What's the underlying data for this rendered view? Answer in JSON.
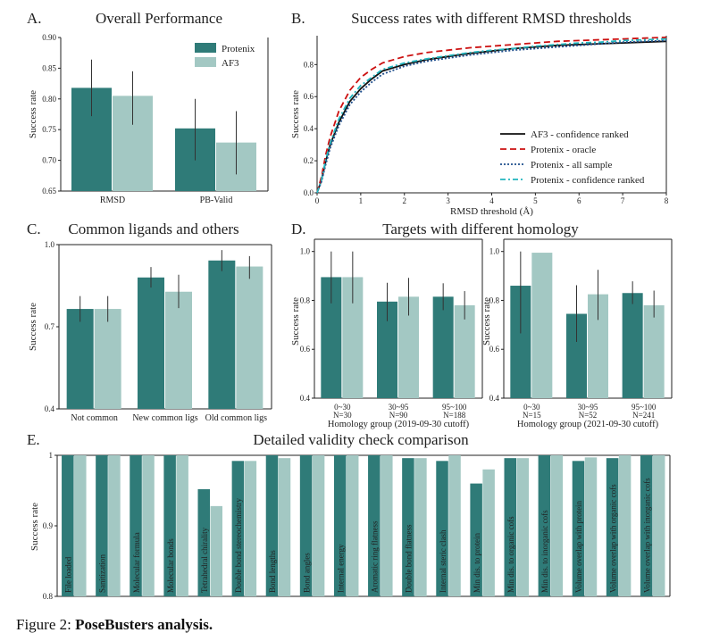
{
  "colors": {
    "protenix": "#2f7b78",
    "af3": "#a3c8c3",
    "err": "#333333",
    "oracle": "#cc1111",
    "confidence": "#111111",
    "allsample": "#1f4e8c",
    "protenix_conf": "#22b5bf"
  },
  "caption": {
    "prefix": "Figure 2: ",
    "bold": "PoseBusters analysis."
  },
  "chart_data": [
    {
      "id": "A",
      "type": "bar",
      "panel_label": "A.",
      "title": "Overall Performance",
      "ylabel": "Success rate",
      "xlabel": "",
      "ylim": [
        0.65,
        0.9
      ],
      "yticks": [
        "0.65",
        "0.70",
        "0.75",
        "0.80",
        "0.85",
        "0.90"
      ],
      "categories": [
        "RMSD",
        "PB-Valid"
      ],
      "legend": "top-right",
      "series": [
        {
          "name": "Protenix",
          "values": [
            0.818,
            0.752
          ],
          "err_low": [
            0.772,
            0.7
          ],
          "err_high": [
            0.864,
            0.8
          ]
        },
        {
          "name": "AF3",
          "values": [
            0.805,
            0.729
          ],
          "err_low": [
            0.758,
            0.677
          ],
          "err_high": [
            0.845,
            0.78
          ]
        }
      ]
    },
    {
      "id": "B",
      "type": "line",
      "panel_label": "B.",
      "title": "Success rates with different RMSD thresholds",
      "xlabel": "RMSD threshold (Å)",
      "ylabel": "Success rate",
      "xlim": [
        0,
        8
      ],
      "ylim": [
        0,
        0.98
      ],
      "xticks": [
        "0",
        "1",
        "2",
        "3",
        "4",
        "5",
        "6",
        "7",
        "8"
      ],
      "yticks": [
        "0.0",
        "0.2",
        "0.4",
        "0.6",
        "0.8"
      ],
      "legend": "bottom-right",
      "series": [
        {
          "name": "AF3 - confidence ranked",
          "style": "solid",
          "x": [
            0,
            0.1,
            0.2,
            0.3,
            0.5,
            0.75,
            1.0,
            1.25,
            1.5,
            2.0,
            2.5,
            3.0,
            3.5,
            4.0,
            4.5,
            5.0,
            5.5,
            6.0,
            6.5,
            7.0,
            7.5,
            8.0
          ],
          "y": [
            0,
            0.08,
            0.2,
            0.3,
            0.44,
            0.57,
            0.65,
            0.71,
            0.76,
            0.8,
            0.83,
            0.85,
            0.87,
            0.885,
            0.9,
            0.91,
            0.92,
            0.925,
            0.93,
            0.935,
            0.94,
            0.945
          ]
        },
        {
          "name": "Protenix - oracle",
          "style": "dashed",
          "x": [
            0,
            0.1,
            0.2,
            0.3,
            0.5,
            0.75,
            1.0,
            1.25,
            1.5,
            2.0,
            2.5,
            3.0,
            3.5,
            4.0,
            4.5,
            5.0,
            5.5,
            6.0,
            6.5,
            7.0,
            7.5,
            8.0
          ],
          "y": [
            0,
            0.1,
            0.24,
            0.35,
            0.51,
            0.64,
            0.72,
            0.77,
            0.81,
            0.85,
            0.875,
            0.89,
            0.905,
            0.915,
            0.925,
            0.935,
            0.945,
            0.95,
            0.955,
            0.96,
            0.965,
            0.97
          ]
        },
        {
          "name": "Protenix - all sample",
          "style": "dotted",
          "x": [
            0,
            0.1,
            0.2,
            0.3,
            0.5,
            0.75,
            1.0,
            1.25,
            1.5,
            2.0,
            2.5,
            3.0,
            3.5,
            4.0,
            4.5,
            5.0,
            5.5,
            6.0,
            6.5,
            7.0,
            7.5,
            8.0
          ],
          "y": [
            0,
            0.07,
            0.18,
            0.28,
            0.42,
            0.55,
            0.63,
            0.69,
            0.74,
            0.79,
            0.82,
            0.84,
            0.86,
            0.875,
            0.89,
            0.9,
            0.91,
            0.92,
            0.93,
            0.94,
            0.945,
            0.95
          ]
        },
        {
          "name": "Protenix - confidence ranked",
          "style": "dashdot",
          "x": [
            0,
            0.1,
            0.2,
            0.3,
            0.5,
            0.75,
            1.0,
            1.25,
            1.5,
            2.0,
            2.5,
            3.0,
            3.5,
            4.0,
            4.5,
            5.0,
            5.5,
            6.0,
            6.5,
            7.0,
            7.5,
            8.0
          ],
          "y": [
            0,
            0.08,
            0.21,
            0.31,
            0.46,
            0.59,
            0.67,
            0.72,
            0.77,
            0.81,
            0.835,
            0.855,
            0.875,
            0.89,
            0.9,
            0.915,
            0.925,
            0.935,
            0.94,
            0.95,
            0.955,
            0.96
          ]
        }
      ]
    },
    {
      "id": "C",
      "type": "bar",
      "panel_label": "C.",
      "title": "Common ligands and others",
      "ylabel": "Success rate",
      "xlabel": "",
      "ylim": [
        0.4,
        1.0
      ],
      "yticks": [
        "0.4",
        "0.7",
        "1.0"
      ],
      "categories": [
        "Not common",
        "New common ligs",
        "Old common ligs"
      ],
      "series": [
        {
          "name": "Protenix",
          "values": [
            0.765,
            0.88,
            0.942
          ],
          "err_low": [
            0.718,
            0.843,
            0.903
          ],
          "err_high": [
            0.812,
            0.918,
            0.98
          ]
        },
        {
          "name": "AF3",
          "values": [
            0.765,
            0.828,
            0.92
          ],
          "err_low": [
            0.718,
            0.768,
            0.875
          ],
          "err_high": [
            0.812,
            0.89,
            0.958
          ]
        }
      ]
    },
    {
      "id": "D1",
      "type": "bar",
      "panel_label": "D.",
      "title": "Targets with different homology",
      "ylabel": "Success rate",
      "xlabel": "Homology group (2019-09-30 cutoff)",
      "ylim": [
        0.4,
        1.05
      ],
      "yticks": [
        "0.4",
        "0.6",
        "0.8",
        "1.0"
      ],
      "categories": [
        "0~30",
        "30~95",
        "95~100"
      ],
      "counts": [
        "N=30",
        "N=90",
        "N=188"
      ],
      "series": [
        {
          "name": "Protenix",
          "values": [
            0.895,
            0.795,
            0.815
          ],
          "err_low": [
            0.788,
            0.715,
            0.76
          ],
          "err_high": [
            1.0,
            0.872,
            0.87
          ]
        },
        {
          "name": "AF3",
          "values": [
            0.895,
            0.815,
            0.78
          ],
          "err_low": [
            0.788,
            0.738,
            0.722
          ],
          "err_high": [
            1.0,
            0.892,
            0.838
          ]
        }
      ]
    },
    {
      "id": "D2",
      "type": "bar",
      "panel_label": "",
      "title": "",
      "ylabel": "Success rate",
      "xlabel": "Homology group (2021-09-30 cutoff)",
      "ylim": [
        0.4,
        1.05
      ],
      "yticks": [
        "0.4",
        "0.6",
        "0.8",
        "1.0"
      ],
      "categories": [
        "0~30",
        "30~95",
        "95~100"
      ],
      "counts": [
        "N=15",
        "N=52",
        "N=241"
      ],
      "series": [
        {
          "name": "Protenix",
          "values": [
            0.86,
            0.745,
            0.83
          ],
          "err_low": [
            0.665,
            0.63,
            0.785
          ],
          "err_high": [
            1.0,
            0.862,
            0.878
          ]
        },
        {
          "name": "AF3",
          "values": [
            0.995,
            0.825,
            0.78
          ],
          "err_low": [
            0.995,
            0.72,
            0.73
          ],
          "err_high": [
            0.995,
            0.925,
            0.84
          ]
        }
      ]
    },
    {
      "id": "E",
      "type": "bar",
      "panel_label": "E.",
      "title": "Detailed validity check comparison",
      "ylabel": "Success rate",
      "xlabel": "",
      "ylim": [
        0.8,
        1.0
      ],
      "yticks": [
        "0.8",
        "0.9",
        "1"
      ],
      "categories": [
        "File loaded",
        "Sanitization",
        "Molecular formula",
        "Molecular bonds",
        "Tetrahedral chirality",
        "Double bond stereochemistry",
        "Bond lengths",
        "Bond angles",
        "Internal energy",
        "Aromatic ring flatness",
        "Double bond flatness",
        "Internal steric clash",
        "Min dis. to protein",
        "Min dis. to organic cofs",
        "Min dis. to inorganic cofs",
        "Volume overlap with protein",
        "Volume overlap with organic cofs",
        "Volume overlap with inorganic cofs"
      ],
      "series": [
        {
          "name": "Protenix",
          "values": [
            1.0,
            1.0,
            1.0,
            1.0,
            0.952,
            0.992,
            1.0,
            1.0,
            1.0,
            1.0,
            0.996,
            0.992,
            0.96,
            0.996,
            1.0,
            0.992,
            0.996,
            1.0
          ]
        },
        {
          "name": "AF3",
          "values": [
            1.0,
            1.0,
            1.0,
            1.0,
            0.928,
            0.992,
            0.996,
            1.0,
            1.0,
            1.0,
            0.996,
            1.0,
            0.98,
            0.996,
            1.0,
            0.997,
            1.0,
            1.0
          ]
        }
      ]
    }
  ]
}
